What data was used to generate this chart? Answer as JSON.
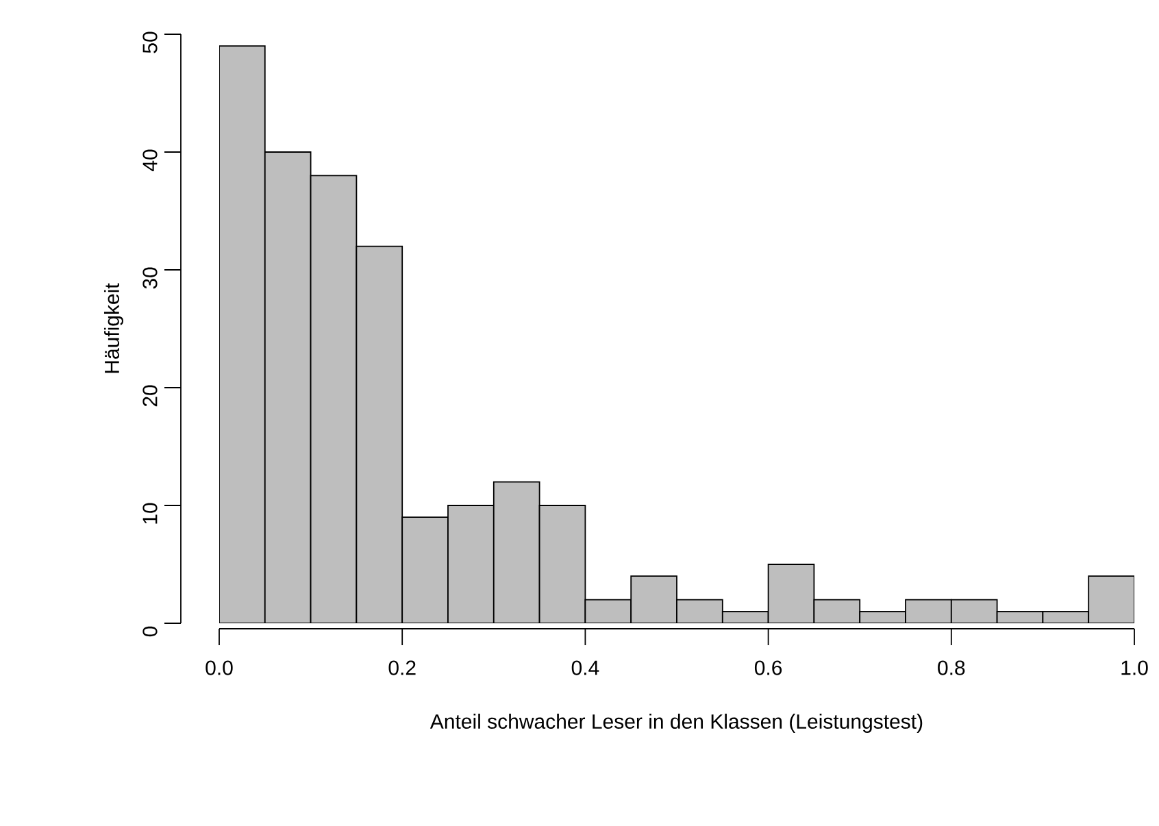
{
  "chart_data": {
    "type": "histogram",
    "xlabel": "Anteil schwacher Leser in den Klassen (Leistungstest)",
    "ylabel": "Häufigkeit",
    "bins": [
      0,
      0.05,
      0.1,
      0.15,
      0.2,
      0.25,
      0.3,
      0.35,
      0.4,
      0.45,
      0.5,
      0.55,
      0.6,
      0.65,
      0.7,
      0.75,
      0.8,
      0.85,
      0.9,
      0.95,
      1.0
    ],
    "values": [
      49,
      40,
      38,
      32,
      9,
      10,
      12,
      10,
      2,
      4,
      2,
      1,
      5,
      2,
      1,
      2,
      2,
      1,
      1,
      4
    ],
    "color": "#bebebe",
    "xlim": [
      0,
      1
    ],
    "ylim": [
      0,
      50
    ],
    "xticks": [
      {
        "value": 0,
        "label": "0.0"
      },
      {
        "value": 0.2,
        "label": "0.2"
      },
      {
        "value": 0.4,
        "label": "0.4"
      },
      {
        "value": 0.6,
        "label": "0.6"
      },
      {
        "value": 0.8,
        "label": "0.8"
      },
      {
        "value": 1.0,
        "label": "1.0"
      }
    ],
    "yticks": [
      0,
      10,
      20,
      30,
      40,
      50
    ],
    "grid": false
  }
}
